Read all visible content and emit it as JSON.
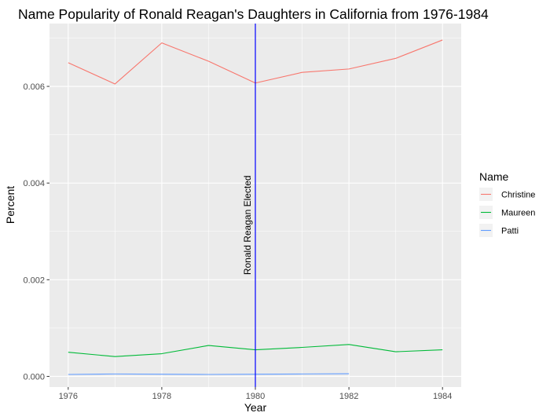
{
  "chart_data": {
    "type": "line",
    "title": "Name Popularity of Ronald Reagan's Daughters in California from 1976-1984",
    "xlabel": "Year",
    "ylabel": "Percent",
    "xlim": [
      1975.6,
      1984.4
    ],
    "ylim": [
      -0.00022,
      0.0073
    ],
    "x_ticks": [
      1976,
      1978,
      1980,
      1982,
      1984
    ],
    "x_tick_labels": [
      "1976",
      "1978",
      "1980",
      "1982",
      "1984"
    ],
    "y_ticks": [
      0,
      0.002,
      0.004,
      0.006
    ],
    "y_tick_labels": [
      "0.000",
      "0.002",
      "0.004",
      "0.006"
    ],
    "grid": true,
    "legend": {
      "title": "Name",
      "position": "right"
    },
    "series": [
      {
        "name": "Christine",
        "color": "#F8766D",
        "x": [
          1976,
          1977,
          1978,
          1979,
          1980,
          1981,
          1982,
          1983,
          1984
        ],
        "values": [
          0.00649,
          0.00605,
          0.0069,
          0.00652,
          0.00607,
          0.00629,
          0.00636,
          0.00658,
          0.00696
        ]
      },
      {
        "name": "Maureen",
        "color": "#00BA38",
        "x": [
          1976,
          1977,
          1978,
          1979,
          1980,
          1981,
          1982,
          1983,
          1984
        ],
        "values": [
          0.0005,
          0.00041,
          0.00047,
          0.00064,
          0.00055,
          0.0006,
          0.00066,
          0.00051,
          0.00055
        ]
      },
      {
        "name": "Patti",
        "color": "#619CFF",
        "x": [
          1976,
          1977,
          1978,
          1979,
          1980,
          1981,
          1982
        ],
        "values": [
          4e-05,
          5e-05,
          4.5e-05,
          4e-05,
          4.5e-05,
          5e-05,
          5.5e-05
        ]
      }
    ],
    "vline": {
      "x": 1980,
      "color": "#0000FF",
      "label": "Ronald Reagan Elected"
    }
  }
}
